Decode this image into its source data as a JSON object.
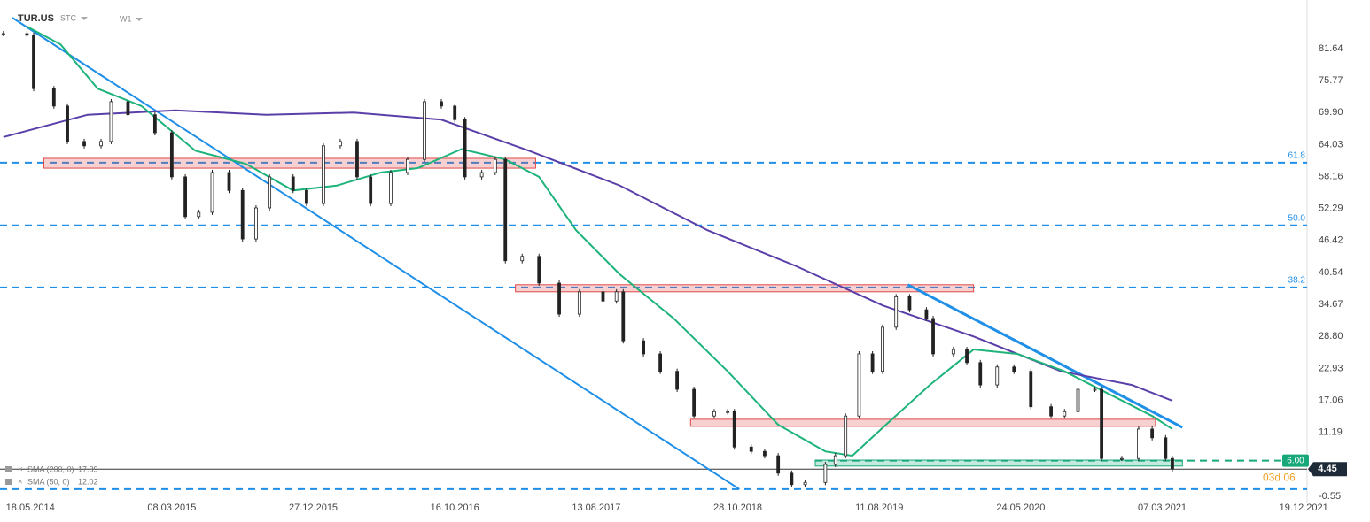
{
  "chart_data": {
    "type": "candlestick",
    "symbol": "TUR.US",
    "source": "STC",
    "interval": "W1",
    "xlim": [
      -9,
      379
    ],
    "ylim": [
      -1.69,
      90.57
    ],
    "xticks": [
      {
        "value": 0,
        "label": "18.05.2014"
      },
      {
        "value": 42,
        "label": "08.03.2015"
      },
      {
        "value": 84,
        "label": "27.12.2015"
      },
      {
        "value": 126,
        "label": "16.10.2016"
      },
      {
        "value": 168,
        "label": "13.08.2017"
      },
      {
        "value": 210,
        "label": "28.10.2018"
      },
      {
        "value": 252,
        "label": "11.08.2019"
      },
      {
        "value": 294,
        "label": "24.05.2020"
      },
      {
        "value": 336,
        "label": "07.03.2021"
      },
      {
        "value": 378,
        "label": "19.12.2021"
      }
    ],
    "yticks": [
      {
        "value": 81.64,
        "label": "81.64"
      },
      {
        "value": 75.77,
        "label": "75.77"
      },
      {
        "value": 69.9,
        "label": "69.90"
      },
      {
        "value": 64.03,
        "label": "64.03"
      },
      {
        "value": 58.16,
        "label": "58.16"
      },
      {
        "value": 52.29,
        "label": "52.29"
      },
      {
        "value": 46.42,
        "label": "46.42"
      },
      {
        "value": 40.54,
        "label": "40.54"
      },
      {
        "value": 34.67,
        "label": "34.67"
      },
      {
        "value": 28.8,
        "label": "28.80"
      },
      {
        "value": 22.93,
        "label": "22.93"
      },
      {
        "value": 17.06,
        "label": "17.06"
      },
      {
        "value": 11.19,
        "label": "11.19"
      },
      {
        "value": -0.55,
        "label": "-0.55"
      }
    ],
    "candle_color": "#222222",
    "series": [
      {
        "name": "TUR.US",
        "x": [
          -8,
          -1,
          1,
          7,
          11,
          16,
          21,
          24,
          29,
          37,
          42,
          46,
          50,
          54,
          59,
          63,
          67,
          71,
          78,
          82,
          87,
          92,
          97,
          101,
          107,
          112,
          117,
          122,
          126,
          129,
          134,
          138,
          141,
          146,
          151,
          157,
          163,
          170,
          174,
          176,
          182,
          187,
          192,
          197,
          203,
          207,
          209,
          214,
          218,
          222,
          226,
          230,
          236,
          239,
          242,
          246,
          250,
          253,
          257,
          261,
          266,
          268,
          274,
          278,
          282,
          287,
          292,
          297,
          303,
          307,
          311,
          316,
          318,
          324,
          329,
          333,
          337,
          339
        ],
        "values": [
          84.4,
          84.1,
          74.3,
          71.1,
          64.6,
          63.8,
          64.6,
          71.9,
          69.5,
          66.2,
          58.1,
          50.8,
          51.6,
          58.9,
          55.6,
          46.7,
          52.4,
          58.1,
          55.6,
          53.2,
          63.8,
          64.6,
          58.1,
          53.2,
          58.9,
          61.3,
          71.9,
          71.1,
          68.6,
          58.1,
          58.9,
          61.3,
          42.7,
          43.5,
          38.6,
          32.9,
          37.0,
          35.3,
          37.0,
          28.0,
          25.6,
          22.4,
          19.1,
          14.2,
          15.0,
          15.0,
          8.5,
          7.7,
          6.9,
          3.7,
          1.6,
          2.0,
          5.3,
          6.9,
          14.2,
          25.6,
          22.4,
          30.5,
          36.1,
          33.7,
          32.1,
          25.6,
          26.4,
          24.0,
          19.9,
          23.2,
          22.4,
          15.9,
          14.2,
          15.0,
          19.1,
          19.1,
          6.4,
          6.4,
          11.8,
          10.2,
          6.4,
          4.45
        ]
      }
    ],
    "indicators": [
      {
        "name": "SMA (200, 0)",
        "last_value": 17.39,
        "color": "#5b3fa8",
        "x": [
          -8,
          17,
          43,
          70,
          96,
          122,
          148,
          175,
          201,
          227,
          253,
          280,
          306,
          327,
          339
        ],
        "values": [
          65.4,
          69.5,
          70.3,
          69.5,
          69.9,
          68.6,
          62.9,
          56.5,
          48.3,
          41.8,
          34.5,
          28.8,
          22.4,
          19.9,
          17.0
        ]
      },
      {
        "name": "SMA (50, 0)",
        "last_value": 12.02,
        "color": "#1db37a",
        "x": [
          -1,
          9,
          20,
          33,
          49,
          64,
          78,
          91,
          104,
          115,
          128,
          141,
          151,
          162,
          175,
          191,
          207,
          222,
          236,
          244,
          254,
          267,
          280,
          293,
          307,
          320,
          333,
          339
        ],
        "values": [
          85.7,
          82.4,
          74.3,
          71.1,
          62.9,
          60.5,
          55.6,
          56.5,
          58.9,
          59.7,
          63.2,
          61.3,
          58.1,
          48.3,
          40.2,
          32.1,
          22.4,
          12.6,
          7.7,
          6.9,
          12.6,
          19.9,
          26.4,
          25.6,
          22.4,
          18.3,
          14.2,
          11.8
        ]
      }
    ],
    "levels": [
      {
        "value": 60.7,
        "label": "61.8",
        "color": "#1f8fe8"
      },
      {
        "value": 49.2,
        "label": "50.0",
        "color": "#1f8fe8"
      },
      {
        "value": 37.8,
        "label": "38.2",
        "color": "#1f8fe8"
      },
      {
        "value": 0.76,
        "color": "#1f8fe8"
      }
    ],
    "target": {
      "value": 6.0,
      "label": "6.00",
      "color": "#17a87a"
    },
    "last_price": {
      "value": 4.45,
      "label": "4.45"
    },
    "countdown": "03d 06",
    "zones": [
      {
        "x": [
          4,
          150
        ],
        "y": [
          61.5,
          59.7
        ],
        "color": "#e04848"
      },
      {
        "x": [
          144,
          280
        ],
        "y": [
          38.3,
          37.0
        ],
        "color": "#e04848"
      },
      {
        "x": [
          196,
          334
        ],
        "y": [
          13.6,
          12.3
        ],
        "color": "#e04848"
      },
      {
        "x": [
          233,
          342
        ],
        "y": [
          6.1,
          5.0
        ],
        "color": "#17a87a"
      }
    ],
    "trendlines": [
      {
        "x": [
          -5.3,
          210.5
        ],
        "y": [
          87.3,
          0.76
        ],
        "color": "#1f8fe8",
        "width": 2
      },
      {
        "x": [
          260.5,
          342
        ],
        "y": [
          38.3,
          12.1
        ],
        "color": "#1f8fe8",
        "width": 3
      }
    ]
  }
}
